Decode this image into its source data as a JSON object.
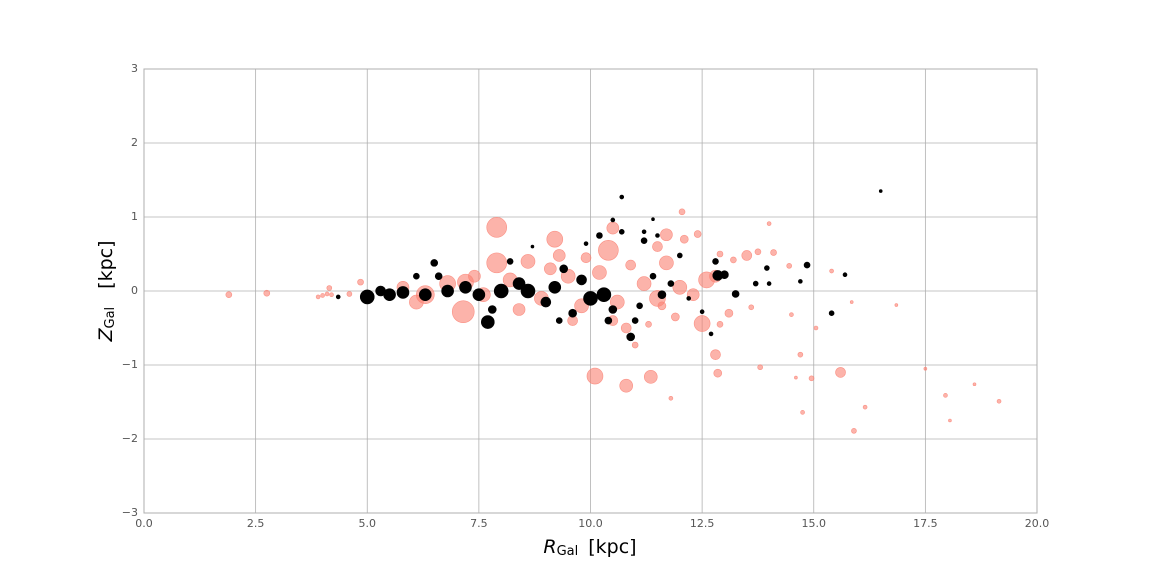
{
  "chart_data": {
    "type": "scatter",
    "xlabel": {
      "symbol": "R",
      "subscript": "Gal",
      "unit": "[kpc]"
    },
    "ylabel": {
      "symbol": "Z",
      "subscript": "Gal",
      "unit": "[kpc]"
    },
    "xlim": [
      0,
      20
    ],
    "ylim": [
      -3,
      3
    ],
    "xticks": [
      {
        "value": 0,
        "label": "0.0"
      },
      {
        "value": 2.5,
        "label": "2.5"
      },
      {
        "value": 5,
        "label": "5.0"
      },
      {
        "value": 7.5,
        "label": "7.5"
      },
      {
        "value": 10,
        "label": "10.0"
      },
      {
        "value": 12.5,
        "label": "12.5"
      },
      {
        "value": 15,
        "label": "15.0"
      },
      {
        "value": 17.5,
        "label": "17.5"
      },
      {
        "value": 20,
        "label": "20.0"
      }
    ],
    "yticks": [
      {
        "value": -3,
        "label": "−3"
      },
      {
        "value": -2,
        "label": "−2"
      },
      {
        "value": -1,
        "label": "−1"
      },
      0,
      1,
      2,
      3
    ],
    "grid": true,
    "series": [
      {
        "color": "#fa8072",
        "opacity": 0.6,
        "x": [
          1.9,
          2.75,
          3.9,
          4.0,
          4.1,
          4.2,
          4.15,
          4.6,
          4.85,
          7.9,
          7.9,
          7.15,
          9.2,
          9.3,
          8.6,
          10.4,
          10.5,
          11.7,
          11.7,
          12.05,
          12.4,
          12.5,
          12.8,
          12.85,
          10.1,
          10.8,
          11.35,
          11.8,
          13.1,
          13.5,
          13.75,
          13.8,
          14.0,
          14.1,
          14.45,
          14.5,
          14.7,
          14.75,
          14.95,
          15.05,
          15.4,
          15.6,
          15.85,
          15.9,
          16.15,
          16.85,
          17.5,
          17.95,
          18.05,
          18.6,
          19.15,
          14.6,
          13.2,
          12.9,
          11.5,
          11.3,
          11.0,
          11.6,
          12.1,
          12.9,
          13.6,
          6.3,
          6.8,
          7.2,
          7.6,
          8.2,
          8.9,
          9.5,
          9.8,
          10.2,
          10.6,
          11.2,
          11.5,
          12.0,
          12.6,
          12.8,
          9.1,
          8.4,
          9.9,
          10.5,
          10.8,
          7.4,
          5.8,
          6.1,
          10.9,
          11.9,
          12.3,
          9.6
        ],
        "values": [
          -0.05,
          -0.03,
          -0.08,
          -0.06,
          -0.04,
          -0.05,
          0.04,
          -0.04,
          0.12,
          0.86,
          0.38,
          -0.28,
          0.7,
          0.48,
          0.4,
          0.55,
          0.85,
          0.76,
          0.38,
          1.07,
          0.77,
          -0.44,
          -0.86,
          -1.11,
          -1.15,
          -1.28,
          -1.16,
          -1.45,
          -0.3,
          0.48,
          0.53,
          -1.03,
          0.91,
          0.52,
          0.34,
          -0.32,
          -0.86,
          -1.64,
          -1.18,
          -0.5,
          0.27,
          -1.1,
          -0.15,
          -1.89,
          -1.57,
          -0.19,
          -1.05,
          -1.41,
          -1.75,
          -1.26,
          -1.49,
          -1.17,
          0.42,
          0.5,
          0.6,
          -0.45,
          -0.73,
          -0.2,
          0.7,
          -0.45,
          -0.22,
          -0.05,
          0.1,
          0.12,
          -0.05,
          0.15,
          -0.1,
          0.2,
          -0.2,
          0.25,
          -0.15,
          0.1,
          -0.1,
          0.05,
          0.15,
          0.2,
          0.3,
          -0.25,
          0.45,
          -0.4,
          -0.5,
          0.2,
          0.05,
          -0.15,
          0.35,
          -0.35,
          -0.05,
          -0.4
        ],
        "sizes": [
          3,
          3,
          2,
          2,
          2,
          2,
          2.5,
          2.5,
          3,
          10,
          10,
          11,
          8,
          6,
          7,
          10,
          6,
          6,
          7,
          3,
          3.5,
          8,
          5,
          4,
          8,
          6.5,
          6.5,
          2,
          4,
          5,
          3,
          2.5,
          2,
          3,
          2.5,
          2,
          2.5,
          2,
          2.5,
          2,
          2,
          5,
          1.5,
          2.5,
          2,
          1.5,
          1.5,
          2,
          1.5,
          1.5,
          2,
          1.5,
          3,
          3,
          5,
          3,
          3,
          4,
          4,
          3,
          2.5,
          9,
          8,
          8,
          7,
          7,
          7,
          7,
          7,
          7,
          7,
          7,
          8,
          7,
          8,
          6,
          6,
          6,
          5,
          5,
          5,
          6,
          6,
          7,
          5,
          4,
          6,
          5
        ]
      },
      {
        "color": "#000000",
        "opacity": 1,
        "x": [
          4.35,
          5.0,
          5.3,
          5.5,
          5.8,
          6.1,
          6.3,
          6.5,
          6.6,
          6.8,
          7.2,
          7.5,
          7.7,
          7.8,
          8.0,
          8.2,
          8.4,
          8.6,
          8.7,
          9.0,
          9.2,
          9.4,
          9.6,
          9.8,
          9.9,
          10.0,
          10.2,
          10.3,
          10.4,
          10.5,
          10.5,
          10.7,
          10.7,
          10.9,
          11.0,
          11.2,
          11.2,
          11.4,
          11.4,
          11.5,
          11.6,
          11.8,
          12.0,
          12.2,
          12.5,
          12.7,
          12.8,
          12.85,
          13.0,
          13.25,
          13.7,
          13.95,
          14.0,
          14.7,
          14.85,
          15.4,
          15.7,
          16.5,
          11.1,
          9.3
        ],
        "values": [
          -0.08,
          -0.08,
          0.0,
          -0.05,
          -0.02,
          0.2,
          -0.05,
          0.38,
          0.2,
          0.0,
          0.05,
          -0.05,
          -0.42,
          -0.25,
          0.0,
          0.4,
          0.1,
          0.0,
          0.6,
          -0.15,
          0.05,
          0.3,
          -0.3,
          0.15,
          0.64,
          -0.1,
          0.75,
          -0.05,
          -0.4,
          0.96,
          -0.25,
          1.27,
          0.8,
          -0.62,
          -0.4,
          0.8,
          0.68,
          0.97,
          0.2,
          0.75,
          -0.05,
          0.1,
          0.48,
          -0.1,
          -0.28,
          -0.58,
          0.4,
          0.21,
          0.22,
          -0.04,
          0.1,
          0.31,
          0.1,
          0.13,
          0.35,
          -0.3,
          0.22,
          1.35,
          -0.2,
          -0.4
        ],
        "sizes": [
          2,
          7,
          5,
          6,
          6,
          3,
          6,
          3.5,
          3.5,
          6,
          6,
          6,
          6.5,
          4,
          7,
          3,
          6,
          7,
          1.5,
          5,
          6,
          4,
          4,
          5,
          2,
          7,
          3,
          7,
          3.5,
          2,
          4,
          2,
          2.5,
          4,
          3,
          2,
          3,
          1.5,
          3,
          2,
          4,
          3,
          2.5,
          2,
          2,
          2,
          3,
          5,
          4,
          3.5,
          2.5,
          2.5,
          2,
          2,
          3,
          2.5,
          2,
          1.5,
          3,
          3
        ]
      }
    ]
  }
}
